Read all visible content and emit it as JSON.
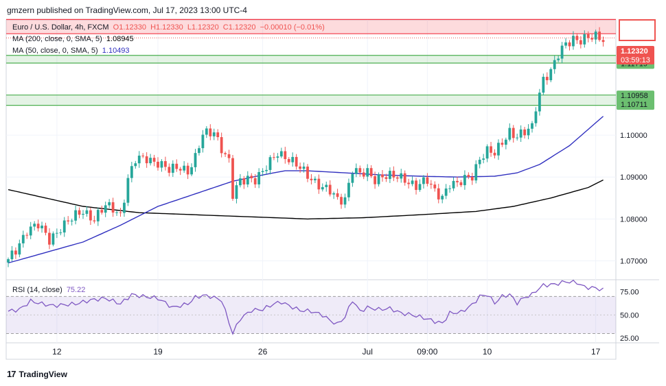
{
  "header": {
    "published": "gmzern published on TradingView.com, Jul 17, 2023 13:00 UTC-4"
  },
  "legend": {
    "symbol": "Euro / U.S. Dollar, 4h, FXCM",
    "o": "O1.12330",
    "h": "H1.12330",
    "l": "L1.12320",
    "c": "C1.12320",
    "change": "−0.00010 (−0.01%)",
    "ma200_label": "MA (200, close, 0, SMA, 5)",
    "ma200_value": "1.08945",
    "ma50_label": "MA (50, close, 0, SMA, 5)",
    "ma50_value": "1.10493",
    "rsi_label": "RSI (14, close)",
    "rsi_value": "75.22"
  },
  "footer": {
    "brand": "TradingView",
    "logo_icon": "tradingview-logo-icon"
  },
  "colors": {
    "up": "#26a69a",
    "down": "#ef5350",
    "ma50": "#2f2fbf",
    "ma200": "#000000",
    "rsi": "#7e57c2",
    "zone_red": "#f23645",
    "zone_green": "#4caf50"
  },
  "chart_data": [
    {
      "type": "candlestick",
      "symbol": "EURUSD",
      "timeframe": "4h",
      "ylim": [
        1.0655,
        1.1275
      ],
      "y_ticks": [
        "1.07000",
        "1.08000",
        "1.09000",
        "1.10000"
      ],
      "x_ticks": [
        "12",
        "19",
        "26",
        "Jul",
        "09:00",
        "10",
        "17"
      ],
      "x_tick_index": [
        13,
        40,
        68,
        96,
        112,
        128,
        157
      ],
      "last_price_label": "1.12320",
      "countdown_label": "03:59:13",
      "zones": [
        {
          "color": "red",
          "low": 1.1242,
          "high": 1.1276,
          "labels": []
        },
        {
          "color": "green",
          "low": 1.11719,
          "high": 1.11903,
          "labels": [
            "1.11903",
            "1.11719"
          ]
        },
        {
          "color": "green",
          "low": 1.10711,
          "high": 1.10958,
          "labels": [
            "1.10958",
            "1.10711"
          ]
        }
      ],
      "close_anchors": [
        [
          0,
          1.07
        ],
        [
          2,
          1.0725
        ],
        [
          5,
          1.0775
        ],
        [
          8,
          1.0785
        ],
        [
          11,
          1.075
        ],
        [
          14,
          1.078
        ],
        [
          17,
          1.08
        ],
        [
          20,
          1.082
        ],
        [
          23,
          1.08
        ],
        [
          26,
          1.083
        ],
        [
          28,
          1.0825
        ],
        [
          30,
          1.081
        ],
        [
          32,
          1.0895
        ],
        [
          34,
          1.094
        ],
        [
          37,
          1.0945
        ],
        [
          40,
          1.0935
        ],
        [
          43,
          1.0915
        ],
        [
          46,
          1.0925
        ],
        [
          48,
          1.0915
        ],
        [
          50,
          1.0945
        ],
        [
          52,
          1.1
        ],
        [
          55,
          1.101
        ],
        [
          57,
          1.097
        ],
        [
          59,
          1.0935
        ],
        [
          60,
          1.0855
        ],
        [
          62,
          1.089
        ],
        [
          64,
          1.09
        ],
        [
          66,
          1.0895
        ],
        [
          68,
          1.091
        ],
        [
          70,
          1.0935
        ],
        [
          72,
          1.096
        ],
        [
          74,
          1.095
        ],
        [
          76,
          1.0935
        ],
        [
          78,
          1.092
        ],
        [
          80,
          1.0905
        ],
        [
          82,
          1.089
        ],
        [
          84,
          1.0875
        ],
        [
          86,
          1.0865
        ],
        [
          88,
          1.0845
        ],
        [
          90,
          1.085
        ],
        [
          92,
          1.092
        ],
        [
          94,
          1.0905
        ],
        [
          96,
          1.091
        ],
        [
          98,
          1.0895
        ],
        [
          100,
          1.0905
        ],
        [
          103,
          1.09
        ],
        [
          106,
          1.0895
        ],
        [
          109,
          1.088
        ],
        [
          112,
          1.089
        ],
        [
          114,
          1.0865
        ],
        [
          116,
          1.0855
        ],
        [
          118,
          1.0885
        ],
        [
          120,
          1.088
        ],
        [
          122,
          1.0895
        ],
        [
          124,
          1.0905
        ],
        [
          126,
          1.0945
        ],
        [
          128,
          1.096
        ],
        [
          130,
          1.0955
        ],
        [
          132,
          1.0985
        ],
        [
          134,
          1.101
        ],
        [
          136,
          1.0995
        ],
        [
          138,
          1.1005
        ],
        [
          140,
          1.102
        ],
        [
          141,
          1.107
        ],
        [
          143,
          1.1135
        ],
        [
          145,
          1.115
        ],
        [
          147,
          1.119
        ],
        [
          149,
          1.122
        ],
        [
          151,
          1.1232
        ],
        [
          153,
          1.1225
        ],
        [
          155,
          1.123
        ],
        [
          157,
          1.1236
        ],
        [
          159,
          1.1232
        ]
      ],
      "ma50_anchors": [
        [
          0,
          1.0695
        ],
        [
          10,
          1.072
        ],
        [
          20,
          1.0745
        ],
        [
          30,
          1.0785
        ],
        [
          40,
          1.083
        ],
        [
          50,
          1.086
        ],
        [
          60,
          1.089
        ],
        [
          68,
          1.0905
        ],
        [
          74,
          1.0915
        ],
        [
          80,
          1.0915
        ],
        [
          90,
          1.091
        ],
        [
          100,
          1.0905
        ],
        [
          110,
          1.0902
        ],
        [
          120,
          1.09
        ],
        [
          130,
          1.0902
        ],
        [
          136,
          1.091
        ],
        [
          142,
          1.093
        ],
        [
          150,
          1.0975
        ],
        [
          159,
          1.1045
        ]
      ],
      "ma200_anchors": [
        [
          0,
          1.087
        ],
        [
          20,
          1.083
        ],
        [
          35,
          1.0815
        ],
        [
          50,
          1.081
        ],
        [
          65,
          1.0805
        ],
        [
          80,
          1.08
        ],
        [
          95,
          1.0803
        ],
        [
          110,
          1.081
        ],
        [
          125,
          1.0818
        ],
        [
          135,
          1.083
        ],
        [
          145,
          1.085
        ],
        [
          155,
          1.0875
        ],
        [
          159,
          1.0893
        ]
      ]
    },
    {
      "type": "line",
      "name": "RSI (14, close)",
      "ylim": [
        20,
        88
      ],
      "levels": [
        30,
        70
      ],
      "y_ticks": [
        "75.00",
        "50.00",
        "25.00"
      ],
      "anchors": [
        [
          0,
          54
        ],
        [
          3,
          56
        ],
        [
          6,
          65
        ],
        [
          9,
          62
        ],
        [
          12,
          60
        ],
        [
          15,
          61
        ],
        [
          18,
          62
        ],
        [
          22,
          66
        ],
        [
          26,
          68
        ],
        [
          30,
          62
        ],
        [
          33,
          72
        ],
        [
          36,
          70
        ],
        [
          40,
          68
        ],
        [
          44,
          58
        ],
        [
          48,
          62
        ],
        [
          50,
          69
        ],
        [
          52,
          71
        ],
        [
          54,
          70
        ],
        [
          57,
          66
        ],
        [
          59,
          42
        ],
        [
          60,
          30
        ],
        [
          62,
          46
        ],
        [
          65,
          55
        ],
        [
          68,
          56
        ],
        [
          71,
          62
        ],
        [
          73,
          64
        ],
        [
          75,
          60
        ],
        [
          78,
          55
        ],
        [
          81,
          54
        ],
        [
          84,
          50
        ],
        [
          86,
          44
        ],
        [
          88,
          40
        ],
        [
          90,
          48
        ],
        [
          92,
          66
        ],
        [
          94,
          54
        ],
        [
          96,
          58
        ],
        [
          99,
          56
        ],
        [
          102,
          57
        ],
        [
          105,
          52
        ],
        [
          108,
          50
        ],
        [
          111,
          47
        ],
        [
          114,
          43
        ],
        [
          116,
          41
        ],
        [
          118,
          52
        ],
        [
          121,
          53
        ],
        [
          124,
          61
        ],
        [
          126,
          70
        ],
        [
          128,
          72
        ],
        [
          130,
          63
        ],
        [
          132,
          70
        ],
        [
          134,
          72
        ],
        [
          136,
          63
        ],
        [
          138,
          69
        ],
        [
          140,
          72
        ],
        [
          141,
          76
        ],
        [
          143,
          82
        ],
        [
          146,
          83
        ],
        [
          149,
          86
        ],
        [
          152,
          85
        ],
        [
          154,
          80
        ],
        [
          157,
          79
        ],
        [
          159,
          77
        ]
      ],
      "value_label": "75.22"
    }
  ]
}
